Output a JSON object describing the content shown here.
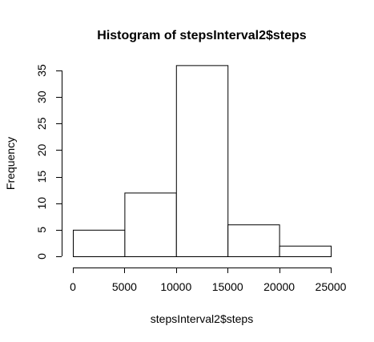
{
  "chart_data": {
    "type": "bar",
    "title": "Histogram of stepsInterval2$steps",
    "xlabel": "stepsInterval2$steps",
    "ylabel": "Frequency",
    "bins": [
      {
        "from": 0,
        "to": 5000,
        "count": 5
      },
      {
        "from": 5000,
        "to": 10000,
        "count": 12
      },
      {
        "from": 10000,
        "to": 15000,
        "count": 36
      },
      {
        "from": 15000,
        "to": 20000,
        "count": 6
      },
      {
        "from": 20000,
        "to": 25000,
        "count": 2
      }
    ],
    "xlim": [
      0,
      25000
    ],
    "ylim": [
      0,
      35
    ],
    "xticks": [
      0,
      5000,
      10000,
      15000,
      20000,
      25000
    ],
    "yticks": [
      0,
      5,
      10,
      15,
      20,
      25,
      30,
      35
    ],
    "grid": false,
    "legend": "none"
  }
}
